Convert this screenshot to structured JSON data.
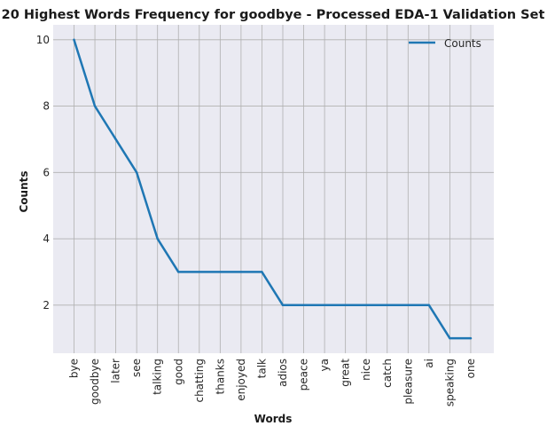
{
  "chart_data": {
    "type": "line",
    "title": "20 Highest Words Frequency for goodbye - Processed EDA-1 Validation Set",
    "xlabel": "Words",
    "ylabel": "Counts",
    "categories": [
      "bye",
      "goodbye",
      "later",
      "see",
      "talking",
      "good",
      "chatting",
      "thanks",
      "enjoyed",
      "talk",
      "adios",
      "peace",
      "ya",
      "great",
      "nice",
      "catch",
      "pleasure",
      "ai",
      "speaking",
      "one"
    ],
    "series": [
      {
        "name": "Counts",
        "values": [
          10,
          8,
          7,
          6,
          4,
          3,
          3,
          3,
          3,
          3,
          2,
          2,
          2,
          2,
          2,
          2,
          2,
          2,
          1,
          1
        ],
        "color": "#1f77b4"
      }
    ],
    "ylim": [
      0.55,
      10.45
    ],
    "yticks": [
      2,
      4,
      6,
      8,
      10
    ],
    "grid": true,
    "legend_position": "top-right",
    "background": "#eaeaf2",
    "grid_color": "#b0b0b0"
  }
}
